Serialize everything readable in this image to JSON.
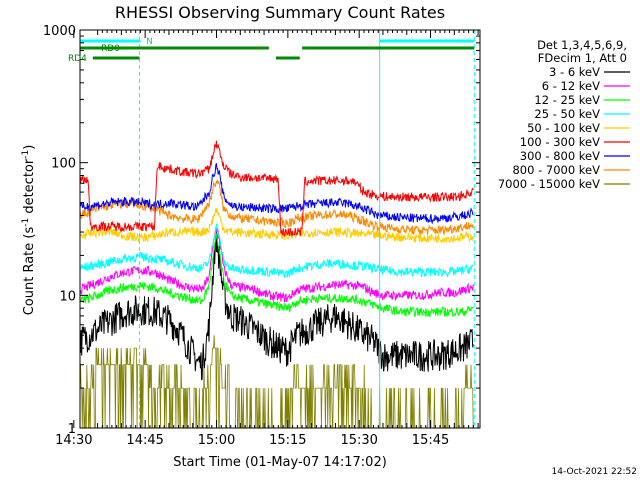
{
  "chart_data": {
    "type": "line",
    "title": "RHESSI Observing Summary Count Rates",
    "xlabel": "Start Time (01-May-07 14:17:02)",
    "ylabel": "Count Rate (s⁻¹ detector⁻¹)",
    "ylabel_main": "Count Rate (s",
    "ylabel_sup1": "-1",
    "ylabel_mid": " detector",
    "ylabel_sup2": "-1",
    "ylabel_end": ")",
    "yscale": "log",
    "ylim": [
      1,
      1000
    ],
    "xlim_minutes": [
      14.3,
      98.4
    ],
    "x_unit": "minutes after 14:17:02",
    "x_ticks": [
      {
        "label": "14:30",
        "minute": 13
      },
      {
        "label": "14:45",
        "minute": 28
      },
      {
        "label": "15:00",
        "minute": 43
      },
      {
        "label": "15:15",
        "minute": 58
      },
      {
        "label": "15:30",
        "minute": 73
      },
      {
        "label": "15:45",
        "minute": 88
      }
    ],
    "y_ticks": [
      {
        "label": "1",
        "value": 1
      },
      {
        "label": "10",
        "value": 10
      },
      {
        "label": "100",
        "value": 100
      },
      {
        "label": "1000",
        "value": 1000
      }
    ],
    "legend_header": [
      "Det 1,3,4,5,6,9,",
      "FDecim 1, Att 0"
    ],
    "series": [
      {
        "name": "3 - 6 keV",
        "color": "#000000",
        "points": [
          [
            14.3,
            4.5
          ],
          [
            18,
            5.5
          ],
          [
            21,
            6.5
          ],
          [
            24,
            7.5
          ],
          [
            27,
            7.8
          ],
          [
            30,
            7.5
          ],
          [
            33,
            6.5
          ],
          [
            35,
            5.5
          ],
          [
            37,
            4.2
          ],
          [
            39,
            3.2
          ],
          [
            40,
            3
          ],
          [
            41.5,
            6
          ],
          [
            42.5,
            20
          ],
          [
            43,
            28
          ],
          [
            43.5,
            20
          ],
          [
            44.5,
            10
          ],
          [
            46,
            7
          ],
          [
            48,
            6.5
          ],
          [
            51,
            5.5
          ],
          [
            54,
            4.5
          ],
          [
            56,
            4
          ],
          [
            58,
            3.8
          ],
          [
            60,
            5
          ],
          [
            64,
            6
          ],
          [
            68,
            7
          ],
          [
            71,
            6
          ],
          [
            74,
            5
          ],
          [
            76,
            4.5
          ],
          [
            78,
            3.5
          ],
          [
            80,
            3.5
          ],
          [
            85,
            3.5
          ],
          [
            90,
            3.5
          ],
          [
            93,
            3.8
          ],
          [
            95,
            4
          ],
          [
            97,
            4.5
          ]
        ]
      },
      {
        "name": "6 - 12 keV",
        "color": "#ff00ff",
        "points": [
          [
            14.3,
            11
          ],
          [
            18,
            12.5
          ],
          [
            21,
            14
          ],
          [
            24,
            15
          ],
          [
            27,
            15.5
          ],
          [
            30,
            15
          ],
          [
            33,
            13
          ],
          [
            37,
            11.5
          ],
          [
            40,
            11
          ],
          [
            41.5,
            14
          ],
          [
            42.5,
            28
          ],
          [
            43,
            32
          ],
          [
            43.5,
            28
          ],
          [
            44.5,
            16
          ],
          [
            46,
            12
          ],
          [
            48,
            11.5
          ],
          [
            51,
            11
          ],
          [
            54,
            10
          ],
          [
            58,
            9.5
          ],
          [
            60,
            11
          ],
          [
            64,
            11.5
          ],
          [
            68,
            12
          ],
          [
            71,
            12
          ],
          [
            74,
            11.5
          ],
          [
            76,
            10.5
          ],
          [
            78,
            10
          ],
          [
            82,
            10
          ],
          [
            86,
            10
          ],
          [
            90,
            10.5
          ],
          [
            93,
            10.5
          ],
          [
            95,
            11
          ],
          [
            97,
            11.5
          ]
        ]
      },
      {
        "name": "12 - 25 keV",
        "color": "#00ff00",
        "points": [
          [
            14.3,
            9
          ],
          [
            18,
            10
          ],
          [
            21,
            11
          ],
          [
            24,
            11.5
          ],
          [
            27,
            11.8
          ],
          [
            30,
            11.5
          ],
          [
            33,
            10.5
          ],
          [
            37,
            9.5
          ],
          [
            40,
            9
          ],
          [
            41.5,
            12
          ],
          [
            42.5,
            22
          ],
          [
            43,
            28
          ],
          [
            43.5,
            22
          ],
          [
            44.5,
            13
          ],
          [
            46,
            10
          ],
          [
            48,
            9.5
          ],
          [
            51,
            9
          ],
          [
            54,
            8.5
          ],
          [
            58,
            8
          ],
          [
            60,
            9
          ],
          [
            64,
            9.5
          ],
          [
            68,
            9.5
          ],
          [
            71,
            9.5
          ],
          [
            74,
            9
          ],
          [
            76,
            8.5
          ],
          [
            78,
            8
          ],
          [
            82,
            7.5
          ],
          [
            86,
            7.5
          ],
          [
            90,
            7.5
          ],
          [
            93,
            7.5
          ],
          [
            95,
            7.5
          ],
          [
            97,
            8
          ]
        ]
      },
      {
        "name": "25 - 50 keV",
        "color": "#00ffff",
        "points": [
          [
            14.3,
            16
          ],
          [
            18,
            17
          ],
          [
            21,
            18
          ],
          [
            24,
            19
          ],
          [
            27,
            19.5
          ],
          [
            30,
            19
          ],
          [
            33,
            18
          ],
          [
            37,
            16.5
          ],
          [
            40,
            16
          ],
          [
            41.5,
            18
          ],
          [
            42.5,
            28
          ],
          [
            43,
            33
          ],
          [
            43.5,
            28
          ],
          [
            44.5,
            18
          ],
          [
            46,
            16
          ],
          [
            48,
            15.5
          ],
          [
            51,
            15.5
          ],
          [
            54,
            15
          ],
          [
            58,
            14.5
          ],
          [
            60,
            16
          ],
          [
            64,
            17
          ],
          [
            68,
            17.5
          ],
          [
            71,
            17
          ],
          [
            74,
            16.5
          ],
          [
            76,
            16
          ],
          [
            78,
            15.5
          ],
          [
            82,
            15
          ],
          [
            86,
            15
          ],
          [
            90,
            15
          ],
          [
            93,
            15
          ],
          [
            95,
            15.5
          ],
          [
            97,
            16
          ]
        ]
      },
      {
        "name": "50 - 100 keV",
        "color": "#ffcc00",
        "points": [
          [
            14.3,
            28
          ],
          [
            18,
            30
          ],
          [
            21,
            30
          ],
          [
            24,
            28
          ],
          [
            27,
            27
          ],
          [
            30,
            28
          ],
          [
            33,
            30
          ],
          [
            35,
            30
          ],
          [
            37,
            30
          ],
          [
            40,
            30
          ],
          [
            41.5,
            32
          ],
          [
            42.5,
            40
          ],
          [
            43,
            45
          ],
          [
            43.5,
            40
          ],
          [
            44.5,
            32
          ],
          [
            46,
            30
          ],
          [
            48,
            30
          ],
          [
            51,
            29
          ],
          [
            54,
            29
          ],
          [
            58,
            28
          ],
          [
            60,
            29
          ],
          [
            64,
            30
          ],
          [
            68,
            30
          ],
          [
            71,
            29.5
          ],
          [
            74,
            29
          ],
          [
            76,
            28.5
          ],
          [
            78,
            28
          ],
          [
            82,
            27.5
          ],
          [
            86,
            27
          ],
          [
            90,
            27
          ],
          [
            93,
            27
          ],
          [
            95,
            27.5
          ],
          [
            97,
            28
          ]
        ]
      },
      {
        "name": "100 - 300 keV",
        "color": "#ff0000",
        "points": [
          [
            14.3,
            75
          ],
          [
            16,
            75
          ],
          [
            16.5,
            33
          ],
          [
            30,
            33
          ],
          [
            30.5,
            95
          ],
          [
            33,
            90
          ],
          [
            36,
            85
          ],
          [
            39,
            82
          ],
          [
            41.5,
            90
          ],
          [
            42.5,
            125
          ],
          [
            43,
            140
          ],
          [
            43.5,
            125
          ],
          [
            44.5,
            95
          ],
          [
            46,
            82
          ],
          [
            48,
            78
          ],
          [
            51,
            77
          ],
          [
            54,
            76
          ],
          [
            56,
            76
          ],
          [
            56.5,
            30
          ],
          [
            61,
            30
          ],
          [
            61.5,
            72
          ],
          [
            64,
            73
          ],
          [
            68,
            73
          ],
          [
            71,
            73
          ],
          [
            72,
            72
          ],
          [
            74,
            60
          ],
          [
            77,
            56
          ],
          [
            80,
            55
          ],
          [
            85,
            55
          ],
          [
            90,
            55
          ],
          [
            93,
            55
          ],
          [
            95,
            57
          ],
          [
            97,
            61
          ]
        ]
      },
      {
        "name": "300 - 800 keV",
        "color": "#0000ff",
        "points": [
          [
            14.3,
            46
          ],
          [
            18,
            48
          ],
          [
            21,
            50
          ],
          [
            24,
            51
          ],
          [
            27,
            50
          ],
          [
            30,
            48
          ],
          [
            33,
            50
          ],
          [
            36,
            48
          ],
          [
            39,
            46
          ],
          [
            41.5,
            60
          ],
          [
            42.5,
            85
          ],
          [
            43,
            93
          ],
          [
            43.5,
            85
          ],
          [
            44.5,
            55
          ],
          [
            46,
            48
          ],
          [
            48,
            46
          ],
          [
            51,
            46
          ],
          [
            54,
            45
          ],
          [
            58,
            45
          ],
          [
            60,
            47
          ],
          [
            64,
            49
          ],
          [
            68,
            50
          ],
          [
            71,
            49
          ],
          [
            74,
            45
          ],
          [
            77,
            40
          ],
          [
            80,
            39
          ],
          [
            85,
            38
          ],
          [
            90,
            38
          ],
          [
            93,
            39
          ],
          [
            95,
            40
          ],
          [
            97,
            42
          ]
        ]
      },
      {
        "name": "800 - 7000 keV",
        "color": "#ff8800",
        "points": [
          [
            14.3,
            40
          ],
          [
            18,
            45
          ],
          [
            21,
            48
          ],
          [
            24,
            49
          ],
          [
            27,
            48
          ],
          [
            30,
            45
          ],
          [
            33,
            40
          ],
          [
            36,
            38
          ],
          [
            39,
            37
          ],
          [
            41.5,
            50
          ],
          [
            42.5,
            68
          ],
          [
            43,
            72
          ],
          [
            43.5,
            68
          ],
          [
            44.5,
            45
          ],
          [
            46,
            40
          ],
          [
            48,
            38
          ],
          [
            51,
            37
          ],
          [
            54,
            36
          ],
          [
            58,
            35
          ],
          [
            60,
            38
          ],
          [
            64,
            40
          ],
          [
            68,
            41
          ],
          [
            71,
            40
          ],
          [
            74,
            36
          ],
          [
            77,
            33
          ],
          [
            80,
            32
          ],
          [
            85,
            31
          ],
          [
            90,
            31
          ],
          [
            93,
            32
          ],
          [
            95,
            33
          ],
          [
            97,
            34
          ]
        ]
      },
      {
        "name": "7000 - 15000 keV",
        "color": "#808000",
        "points": [
          [
            14.3,
            2
          ],
          [
            18,
            2.6
          ],
          [
            21,
            2.8
          ],
          [
            24,
            2.8
          ],
          [
            27,
            2.6
          ],
          [
            30,
            2.4
          ],
          [
            33,
            2.2
          ],
          [
            36,
            1.6
          ],
          [
            39,
            1.4
          ],
          [
            41,
            1.6
          ],
          [
            42.5,
            3.8
          ],
          [
            43,
            4
          ],
          [
            43.5,
            3.4
          ],
          [
            45,
            1.6
          ],
          [
            48,
            1.3
          ],
          [
            51,
            1.5
          ],
          [
            54,
            1.4
          ],
          [
            58,
            1.4
          ],
          [
            60,
            1.7
          ],
          [
            64,
            2
          ],
          [
            68,
            2
          ],
          [
            71,
            2.2
          ],
          [
            74,
            1.6
          ],
          [
            77,
            1.3
          ],
          [
            80,
            1.3
          ],
          [
            85,
            1.3
          ],
          [
            90,
            1.3
          ],
          [
            93,
            1.4
          ],
          [
            95,
            1.5
          ],
          [
            97,
            1.7
          ]
        ]
      }
    ],
    "annotations": {
      "saa_label": "N",
      "rd0_label": "RD0",
      "rd4_label": "RD4"
    },
    "grid": false,
    "legend_placement": "top-right, outside plot"
  },
  "footer": {
    "timestamp": "14-Oct-2021 22:52"
  }
}
